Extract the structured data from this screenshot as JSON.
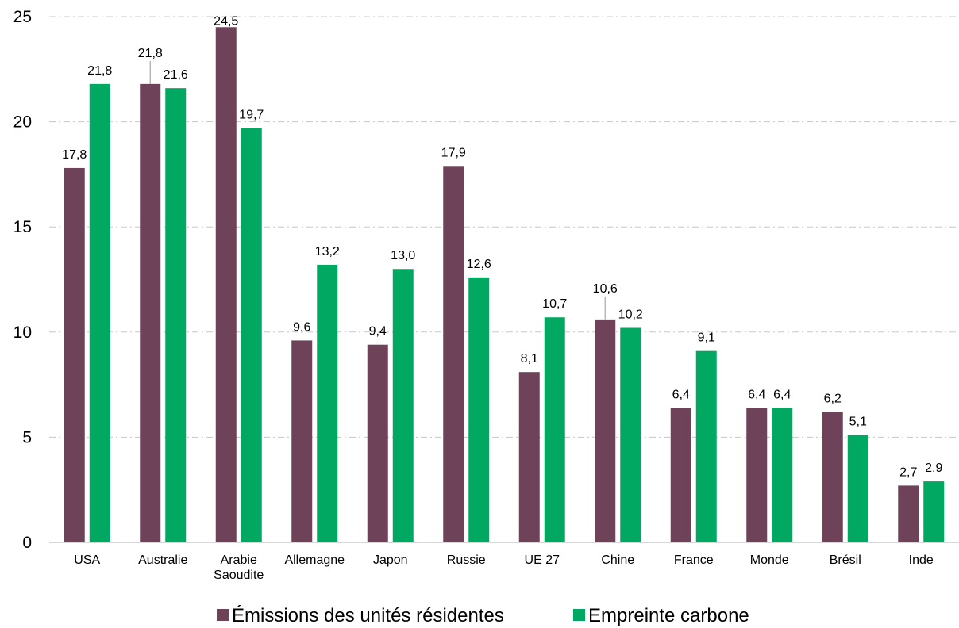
{
  "chart_data": {
    "type": "bar",
    "title": "",
    "xlabel": "",
    "ylabel": "",
    "ylim": [
      0,
      25
    ],
    "yticks": [
      0,
      5,
      10,
      15,
      20,
      25
    ],
    "grid": true,
    "legend_position": "bottom",
    "categories": [
      [
        "USA"
      ],
      [
        "Australie"
      ],
      [
        "Arabie",
        "Saoudite"
      ],
      [
        "Allemagne"
      ],
      [
        "Japon"
      ],
      [
        "Russie"
      ],
      [
        "UE 27"
      ],
      [
        "Chine"
      ],
      [
        "France"
      ],
      [
        "Monde"
      ],
      [
        "Brésil"
      ],
      [
        "Inde"
      ]
    ],
    "series": [
      {
        "name": "Émissions des unités résidentes",
        "color": "#6e4359",
        "values": [
          17.8,
          21.8,
          24.5,
          9.6,
          9.4,
          17.9,
          8.1,
          10.6,
          6.4,
          6.4,
          6.2,
          2.7
        ],
        "labels": [
          "17,8",
          "21,8",
          "24,5",
          "9,6",
          "9,4",
          "17,9",
          "8,1",
          "10,6",
          "6,4",
          "6,4",
          "6,2",
          "2,7"
        ]
      },
      {
        "name": "Empreinte carbone",
        "color": "#00a862",
        "values": [
          21.8,
          21.6,
          19.7,
          13.2,
          13.0,
          12.6,
          10.7,
          10.2,
          9.1,
          6.4,
          5.1,
          2.9
        ],
        "labels": [
          "21,8",
          "21,6",
          "19,7",
          "13,2",
          "13,0",
          "12,6",
          "10,7",
          "10,2",
          "9,1",
          "6,4",
          "5,1",
          "2,9"
        ]
      }
    ]
  }
}
